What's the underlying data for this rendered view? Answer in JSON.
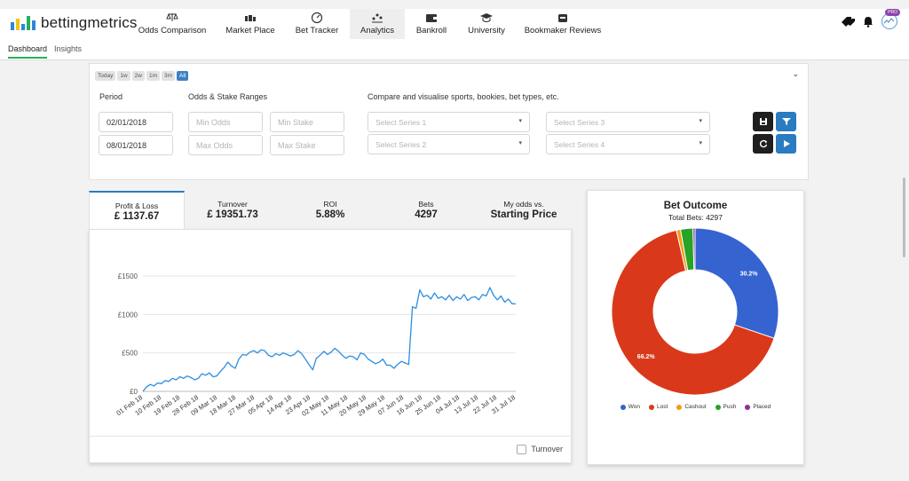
{
  "app": {
    "logo_text": "bettingmetrics",
    "pro_badge": "PRO"
  },
  "nav": {
    "items": [
      {
        "label": "Odds Comparison",
        "icon": "scales-icon"
      },
      {
        "label": "Market Place",
        "icon": "horse-icon"
      },
      {
        "label": "Bet Tracker",
        "icon": "speedometer-icon"
      },
      {
        "label": "Analytics",
        "icon": "analytics-icon",
        "active": true
      },
      {
        "label": "Bankroll",
        "icon": "wallet-icon"
      },
      {
        "label": "University",
        "icon": "graduation-cap-icon"
      },
      {
        "label": "Bookmaker Reviews",
        "icon": "review-icon"
      }
    ]
  },
  "subnav": {
    "dashboard": "Dashboard",
    "insights": "Insights"
  },
  "filters": {
    "range_buttons": [
      "Today",
      "1w",
      "2w",
      "1m",
      "3m",
      "All"
    ],
    "period_label": "Period",
    "ranges_label": "Odds & Stake Ranges",
    "compare_label": "Compare and visualise sports, bookies, bet types, etc.",
    "date_from": "02/01/2018",
    "date_to": "08/01/2018",
    "min_odds_ph": "Min Odds",
    "max_odds_ph": "Max Odds",
    "min_stake_ph": "Min Stake",
    "max_stake_ph": "Max Stake",
    "series1_ph": "Select Series 1",
    "series2_ph": "Select Series 2",
    "series3_ph": "Select Series 3",
    "series4_ph": "Select Series 4"
  },
  "tabs": [
    {
      "label": "Profit & Loss",
      "value": "£ 1137.67",
      "active": true
    },
    {
      "label": "Turnover",
      "value": "£ 19351.73"
    },
    {
      "label": "ROI",
      "value": "5.88%"
    },
    {
      "label": "Bets",
      "value": "4297"
    },
    {
      "label": "My odds vs.",
      "value": "Starting Price"
    }
  ],
  "chart_footer": {
    "turnover_label": "Turnover"
  },
  "chart_data": [
    {
      "type": "line",
      "x_ticks": [
        "01 Feb 18",
        "10 Feb 18",
        "19 Feb 18",
        "28 Feb 18",
        "09 Mar 18",
        "18 Mar 18",
        "27 Mar 18",
        "05 Apr 18",
        "14 Apr 18",
        "23 Apr 18",
        "02 May 18",
        "11 May 18",
        "20 May 18",
        "29 May 18",
        "07 Jun 18",
        "16 Jun 18",
        "25 Jun 18",
        "04 Jul 18",
        "13 Jul 18",
        "22 Jul 18",
        "31 Jul 18"
      ],
      "y_ticks": [
        "£0",
        "£500",
        "£1000",
        "£1500"
      ],
      "ylim": [
        0,
        1500
      ],
      "series": [
        {
          "values": [
            0,
            60,
            90,
            70,
            110,
            100,
            140,
            130,
            170,
            150,
            190,
            170,
            200,
            180,
            150,
            170,
            230,
            210,
            240,
            190,
            200,
            260,
            310,
            380,
            330,
            300,
            420,
            480,
            470,
            510,
            530,
            500,
            540,
            530,
            470,
            450,
            490,
            470,
            500,
            480,
            460,
            480,
            530,
            490,
            420,
            350,
            280,
            430,
            470,
            520,
            480,
            510,
            560,
            520,
            470,
            430,
            460,
            450,
            410,
            500,
            480,
            420,
            390,
            360,
            380,
            420,
            340,
            340,
            300,
            350,
            390,
            370,
            350,
            1100,
            1080,
            1320,
            1230,
            1250,
            1200,
            1280,
            1210,
            1230,
            1190,
            1250,
            1180,
            1230,
            1200,
            1260,
            1180,
            1220,
            1230,
            1190,
            1260,
            1240,
            1350,
            1250,
            1190,
            1240,
            1160,
            1200,
            1140,
            1137
          ]
        }
      ]
    },
    {
      "type": "pie",
      "title": "Bet Outcome",
      "subtitle": "Total Bets: 4297",
      "labels": [
        "Won",
        "Lost",
        "Cashout",
        "Push",
        "Placed"
      ],
      "values": [
        30.2,
        66.2,
        0.8,
        2.4,
        0.4
      ],
      "data_labels": [
        "30.2%",
        "66.2%",
        "",
        "",
        ""
      ],
      "colors": [
        "#3563d0",
        "#d9391a",
        "#f39c12",
        "#27a327",
        "#8e2d9c"
      ]
    }
  ]
}
